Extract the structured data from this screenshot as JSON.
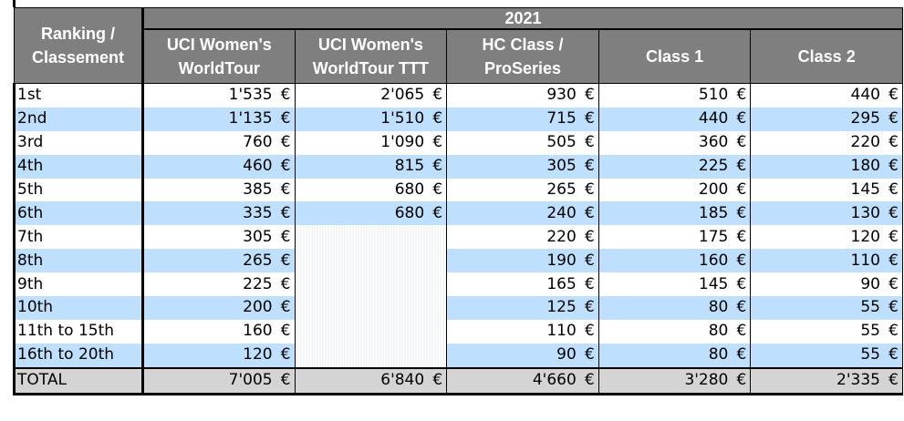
{
  "year": "2021",
  "rank_header": "Ranking /\nClassement",
  "columns": [
    "UCI Women's\nWorldTour",
    "UCI Women's\nWorldTour TTT",
    "HC Class /\nProSeries",
    "Class 1",
    "Class 2"
  ],
  "currency": "€",
  "rows": [
    {
      "rank": "1st",
      "values": [
        "1'535",
        "2'065",
        "930",
        "510",
        "440"
      ]
    },
    {
      "rank": "2nd",
      "values": [
        "1'135",
        "1'510",
        "715",
        "440",
        "295"
      ]
    },
    {
      "rank": "3rd",
      "values": [
        "760",
        "1'090",
        "505",
        "360",
        "220"
      ]
    },
    {
      "rank": "4th",
      "values": [
        "460",
        "815",
        "305",
        "225",
        "180"
      ]
    },
    {
      "rank": "5th",
      "values": [
        "385",
        "680",
        "265",
        "200",
        "145"
      ]
    },
    {
      "rank": "6th",
      "values": [
        "335",
        "680",
        "240",
        "185",
        "130"
      ]
    },
    {
      "rank": "7th",
      "values": [
        "305",
        "",
        "220",
        "175",
        "120"
      ]
    },
    {
      "rank": "8th",
      "values": [
        "265",
        "",
        "190",
        "160",
        "110"
      ]
    },
    {
      "rank": "9th",
      "values": [
        "225",
        "",
        "165",
        "145",
        "90"
      ]
    },
    {
      "rank": "10th",
      "values": [
        "200",
        "",
        "125",
        "80",
        "55"
      ]
    },
    {
      "rank": "11th to 15th",
      "values": [
        "160",
        "",
        "110",
        "80",
        "55"
      ]
    },
    {
      "rank": "16th to 20th",
      "values": [
        "120",
        "",
        "90",
        "80",
        "55"
      ]
    }
  ],
  "total": {
    "rank": "TOTAL",
    "values": [
      "7'005",
      "6'840",
      "4'660",
      "3'280",
      "2'335"
    ]
  }
}
